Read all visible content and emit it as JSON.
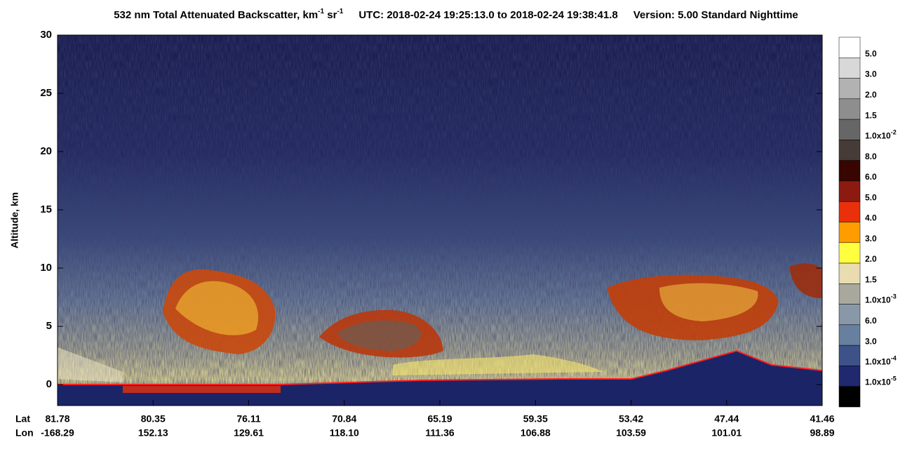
{
  "chart_data": {
    "type": "heatmap",
    "title_parts": [
      "532 nm Total Attenuated Backscatter, km",
      "-1",
      " sr",
      "-1"
    ],
    "time_range": "UTC:  2018-02-24 19:25:13.0  to  2018-02-24 19:38:41.8",
    "version": "Version: 5.00  Standard  Nighttime",
    "ylabel": "Altitude, km",
    "ylim": [
      -1.8,
      30
    ],
    "yticks": [
      0,
      5,
      10,
      15,
      20,
      25,
      30
    ],
    "x_row_labels": [
      "Lat",
      "Lon"
    ],
    "lat": [
      81.78,
      80.35,
      76.11,
      70.84,
      65.19,
      59.35,
      53.42,
      47.44,
      41.46
    ],
    "lon": [
      -168.29,
      152.13,
      129.61,
      {
        "value": 118.1,
        "label": "118.10"
      },
      111.36,
      106.88,
      103.59,
      101.01,
      98.89
    ],
    "colorbar": {
      "labels": [
        "5.0",
        "3.0",
        "2.0",
        "1.5",
        {
          "mantissa": "1.0x10",
          "exponent": "-2"
        },
        "8.0",
        "6.0",
        "5.0",
        "4.0",
        "3.0",
        "2.0",
        "1.5",
        {
          "mantissa": "1.0x10",
          "exponent": "-3"
        },
        "6.0",
        "3.0",
        {
          "mantissa": "1.0x10",
          "exponent": "-4"
        },
        {
          "mantissa": "1.0x10",
          "exponent": "-5"
        }
      ],
      "colors": [
        "#ffffff",
        "#d8d8d8",
        "#b2b2b2",
        "#8e8e8e",
        "#666666",
        "#463b36",
        "#380500",
        "#8c1a10",
        "#ea300a",
        "#ff9c00",
        "#ffff40",
        "#e8dcb0",
        "#a8a89c",
        "#8898a8",
        "#6880a0",
        "#3c5288",
        "#20286e",
        "#000000"
      ]
    }
  }
}
